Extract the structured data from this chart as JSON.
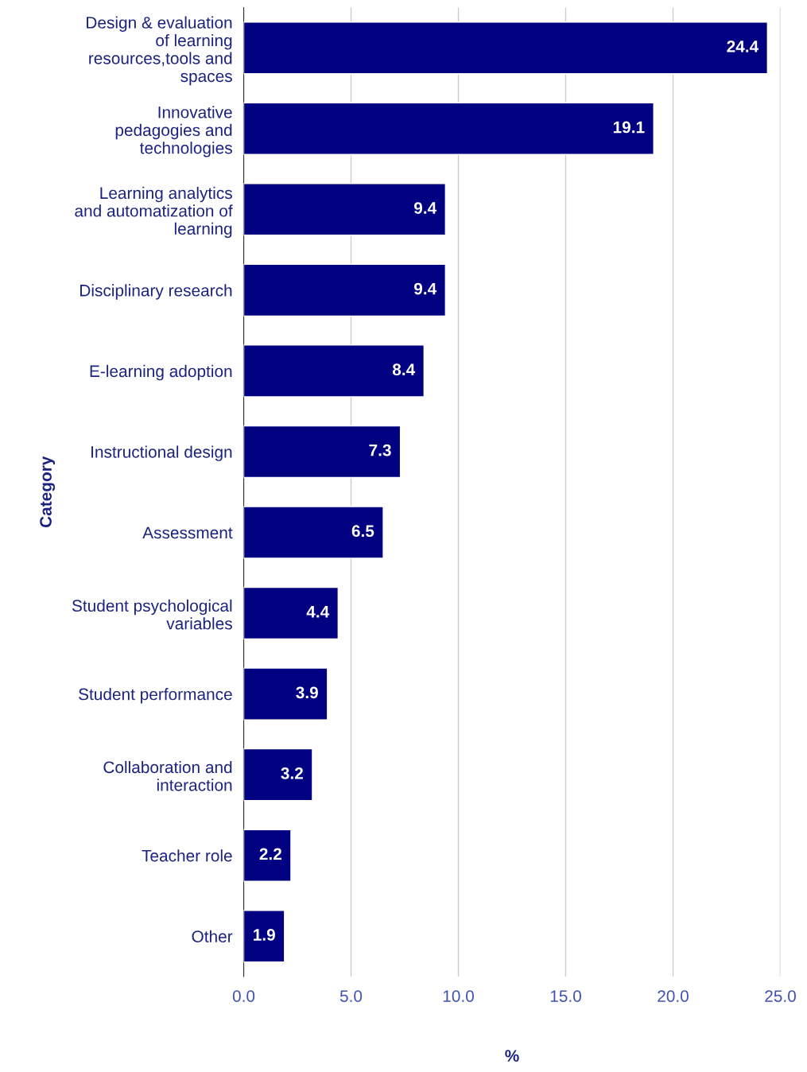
{
  "chart_data": {
    "type": "bar",
    "orientation": "horizontal",
    "categories": [
      "Design & evaluation\nof learning\nresources,tools and\nspaces",
      "Innovative\npedagogies and\ntechnologies",
      "Learning analytics\nand automatization of\nlearning",
      "Disciplinary research",
      "E-learning adoption",
      "Instructional design",
      "Assessment",
      "Student psychological\nvariables",
      "Student performance",
      "Collaboration and\ninteraction",
      "Teacher role",
      "Other"
    ],
    "values": [
      24.4,
      19.1,
      9.4,
      9.4,
      8.4,
      7.3,
      6.5,
      4.4,
      3.9,
      3.2,
      2.2,
      1.9
    ],
    "color": "#000080",
    "xlabel": "%",
    "ylabel": "Category",
    "xlim": [
      0,
      25
    ],
    "xticks": [
      {
        "value": 0,
        "label": "0.0"
      },
      {
        "value": 5,
        "label": "5.0"
      },
      {
        "value": 10,
        "label": "10.0"
      },
      {
        "value": 15,
        "label": "15.0"
      },
      {
        "value": 20,
        "label": "20.0"
      },
      {
        "value": 25,
        "label": "25.0"
      }
    ],
    "grid": "x",
    "data_labels": true
  }
}
